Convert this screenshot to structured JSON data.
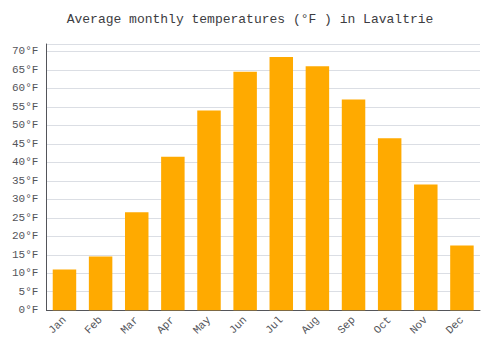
{
  "chart_data": {
    "type": "bar",
    "title": "Average monthly temperatures (°F ) in Lavaltrie",
    "categories": [
      "Jan",
      "Feb",
      "Mar",
      "Apr",
      "May",
      "Jun",
      "Jul",
      "Aug",
      "Sep",
      "Oct",
      "Nov",
      "Dec"
    ],
    "values": [
      11,
      14.5,
      26.5,
      41.5,
      54,
      64.5,
      68.5,
      66,
      57,
      46.5,
      34,
      17.5
    ],
    "color": "#FFAA00",
    "ylim": [
      0,
      72
    ],
    "yticks": [
      {
        "value": 0,
        "label": "0°F"
      },
      {
        "value": 5,
        "label": "5°F"
      },
      {
        "value": 10,
        "label": "10°F"
      },
      {
        "value": 15,
        "label": "15°F"
      },
      {
        "value": 20,
        "label": "20°F"
      },
      {
        "value": 25,
        "label": "25°F"
      },
      {
        "value": 30,
        "label": "30°F"
      },
      {
        "value": 35,
        "label": "35°F"
      },
      {
        "value": 40,
        "label": "40°F"
      },
      {
        "value": 45,
        "label": "45°F"
      },
      {
        "value": 50,
        "label": "50°F"
      },
      {
        "value": 55,
        "label": "55°F"
      },
      {
        "value": 60,
        "label": "60°F"
      },
      {
        "value": 65,
        "label": "65°F"
      },
      {
        "value": 70,
        "label": "70°F"
      }
    ],
    "grid": true
  }
}
